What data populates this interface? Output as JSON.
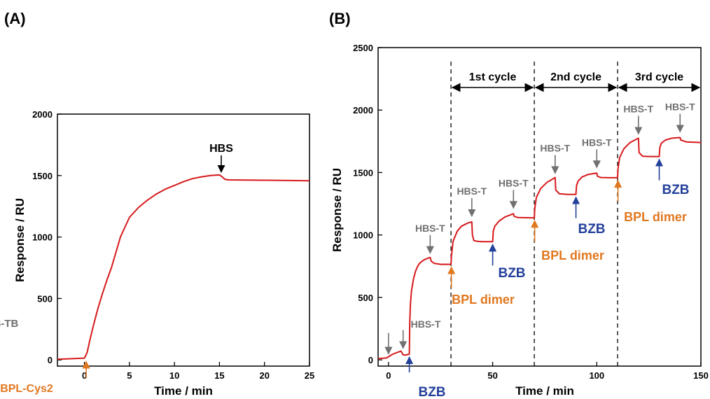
{
  "colors": {
    "trace": "#d7191c",
    "axis": "#000000",
    "hbs_t": "#707070",
    "bpl": "#e07820",
    "bzb": "#23409a",
    "hbs": "#000000"
  },
  "chart_data": [
    {
      "type": "line",
      "panel_label": "(A)",
      "xlabel": "Time / min",
      "ylabel": "Response / RU",
      "xlim": [
        -3,
        25
      ],
      "ylim": [
        -50,
        2000
      ],
      "xticks": [
        0,
        5,
        10,
        15,
        20,
        25
      ],
      "yticks": [
        0,
        500,
        1000,
        1500,
        2000
      ],
      "grid": false,
      "series": [
        {
          "x": [
            -3,
            0,
            0.3,
            0.6,
            1,
            1.5,
            2,
            2.5,
            3,
            4,
            5,
            6,
            7,
            8,
            9,
            10,
            11,
            12,
            13,
            14,
            15,
            15.3,
            15.6,
            16,
            18,
            20,
            22,
            25
          ],
          "y": [
            5,
            15,
            60,
            160,
            280,
            420,
            540,
            650,
            750,
            1000,
            1160,
            1240,
            1300,
            1350,
            1390,
            1420,
            1450,
            1475,
            1490,
            1500,
            1505,
            1490,
            1470,
            1465,
            1463,
            1462,
            1460,
            1458
          ]
        }
      ],
      "annotations": [
        {
          "text": "HBS",
          "color_key": "hbs",
          "x": 15.2,
          "y": 1505
        },
        {
          "text": "BPL-Cys2",
          "color_key": "bpl",
          "x": 0.2,
          "y": 10
        }
      ]
    },
    {
      "type": "line",
      "panel_label": "(B)",
      "xlabel": "Time / min",
      "ylabel": "Response / RU",
      "xlim": [
        -5,
        150
      ],
      "ylim": [
        -50,
        2500
      ],
      "xticks": [
        0,
        50,
        100,
        150
      ],
      "yticks": [
        0,
        500,
        1000,
        1500,
        2000,
        2500
      ],
      "grid": false,
      "series": [
        {
          "x": [
            -5,
            -1,
            0,
            2,
            4,
            6,
            7,
            8,
            9,
            10,
            10.2,
            10.5,
            11,
            12,
            13,
            14,
            15,
            17,
            19,
            20,
            20.5,
            22,
            25,
            30,
            30.2,
            31,
            33,
            35,
            38,
            40,
            40.3,
            41,
            43,
            45,
            50,
            50.3,
            51,
            53,
            56,
            60,
            60.3,
            62,
            66,
            70,
            70.2,
            71,
            73,
            76,
            80,
            80.3,
            82,
            86,
            90,
            90.3,
            91,
            93,
            96,
            100,
            100.3,
            102,
            106,
            110,
            110.2,
            111,
            113,
            116,
            120,
            120.3,
            122,
            126,
            130,
            130.3,
            131,
            133,
            136,
            140,
            140.3,
            143,
            150
          ],
          "y": [
            10,
            15,
            25,
            45,
            58,
            70,
            40,
            38,
            42,
            45,
            300,
            440,
            550,
            650,
            710,
            750,
            775,
            800,
            815,
            820,
            790,
            772,
            765,
            765,
            830,
            950,
            1030,
            1070,
            1095,
            1105,
            1000,
            955,
            948,
            946,
            946,
            1030,
            1070,
            1110,
            1145,
            1170,
            1150,
            1140,
            1138,
            1137,
            1210,
            1300,
            1370,
            1420,
            1460,
            1360,
            1330,
            1325,
            1325,
            1395,
            1430,
            1465,
            1485,
            1495,
            1470,
            1460,
            1458,
            1458,
            1530,
            1620,
            1690,
            1740,
            1775,
            1660,
            1630,
            1628,
            1628,
            1700,
            1735,
            1760,
            1775,
            1780,
            1760,
            1745,
            1740
          ]
        }
      ],
      "cycles": [
        {
          "label": "1st cycle",
          "x_start": 30,
          "x_end": 70
        },
        {
          "label": "2nd cycle",
          "x_start": 70,
          "x_end": 110
        },
        {
          "label": "3rd cycle",
          "x_start": 110,
          "x_end": 150
        }
      ],
      "annotations": [
        {
          "text": "HBS-TB",
          "color_key": "hbs_t",
          "x": 0,
          "y": 25
        },
        {
          "text": "HBS-T",
          "color_key": "hbs_t",
          "x": 7,
          "y": 70
        },
        {
          "text": "BZB",
          "color_key": "bzb",
          "x": 10,
          "y": 45
        },
        {
          "text": "HBS-T",
          "color_key": "hbs_t",
          "x": 20,
          "y": 820
        },
        {
          "text": "BPL dimer",
          "color_key": "bpl",
          "x": 30.2,
          "y": 765
        },
        {
          "text": "HBS-T",
          "color_key": "hbs_t",
          "x": 40,
          "y": 1105
        },
        {
          "text": "BZB",
          "color_key": "bzb",
          "x": 50,
          "y": 946
        },
        {
          "text": "HBS-T",
          "color_key": "hbs_t",
          "x": 60,
          "y": 1170
        },
        {
          "text": "BPL dimer",
          "color_key": "bpl",
          "x": 70.2,
          "y": 1137
        },
        {
          "text": "HBS-T",
          "color_key": "hbs_t",
          "x": 80,
          "y": 1460
        },
        {
          "text": "BZB",
          "color_key": "bzb",
          "x": 90,
          "y": 1325
        },
        {
          "text": "HBS-T",
          "color_key": "hbs_t",
          "x": 100,
          "y": 1495
        },
        {
          "text": "BPL dimer",
          "color_key": "bpl",
          "x": 110.2,
          "y": 1458
        },
        {
          "text": "HBS-T",
          "color_key": "hbs_t",
          "x": 120,
          "y": 1775
        },
        {
          "text": "BZB",
          "color_key": "bzb",
          "x": 130,
          "y": 1628
        },
        {
          "text": "HBS-T",
          "color_key": "hbs_t",
          "x": 140,
          "y": 1780
        }
      ]
    }
  ]
}
